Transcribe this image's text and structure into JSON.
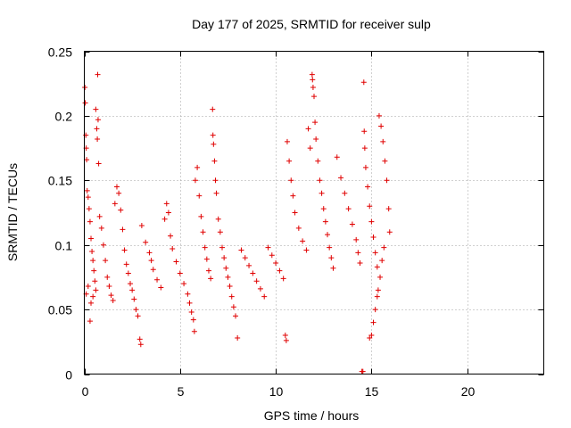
{
  "chart_data": {
    "type": "scatter",
    "title": "Day 177 of 2025, SRMTID for receiver sulp",
    "xlabel": "GPS time / hours",
    "ylabel": "SRMTID / TECUs",
    "xlim": [
      0,
      24
    ],
    "ylim": [
      0,
      0.25
    ],
    "x_ticks": [
      0,
      5,
      10,
      15,
      20
    ],
    "x_tick_labels": [
      "0",
      "5",
      "10",
      "15",
      "20"
    ],
    "y_ticks": [
      0,
      0.05,
      0.1,
      0.15,
      0.2,
      0.25
    ],
    "y_tick_labels": [
      "0",
      "0.05",
      "0.1",
      "0.15",
      "0.2",
      "0.25"
    ],
    "grid": true,
    "marker": "plus",
    "color": "#e00000",
    "series": [
      {
        "points": [
          [
            0.03,
            0.222
          ],
          [
            0.05,
            0.21
          ],
          [
            0.08,
            0.185
          ],
          [
            0.1,
            0.175
          ],
          [
            0.12,
            0.166
          ],
          [
            0.15,
            0.142
          ],
          [
            0.2,
            0.137
          ],
          [
            0.25,
            0.128
          ],
          [
            0.3,
            0.118
          ],
          [
            0.35,
            0.105
          ],
          [
            0.4,
            0.095
          ],
          [
            0.45,
            0.088
          ],
          [
            0.5,
            0.08
          ],
          [
            0.55,
            0.072
          ],
          [
            0.6,
            0.065
          ],
          [
            0.1,
            0.062
          ],
          [
            0.2,
            0.068
          ],
          [
            0.3,
            0.041
          ],
          [
            0.35,
            0.055
          ],
          [
            0.45,
            0.06
          ],
          [
            0.6,
            0.205
          ],
          [
            0.65,
            0.19
          ],
          [
            0.68,
            0.182
          ],
          [
            0.7,
            0.232
          ],
          [
            0.72,
            0.197
          ],
          [
            0.75,
            0.163
          ],
          [
            0.8,
            0.122
          ],
          [
            0.9,
            0.113
          ],
          [
            1.0,
            0.1
          ],
          [
            1.1,
            0.088
          ],
          [
            1.2,
            0.075
          ],
          [
            1.3,
            0.068
          ],
          [
            1.4,
            0.061
          ],
          [
            1.5,
            0.057
          ],
          [
            1.6,
            0.132
          ],
          [
            1.7,
            0.145
          ],
          [
            1.8,
            0.14
          ],
          [
            1.9,
            0.127
          ],
          [
            2.0,
            0.112
          ],
          [
            2.1,
            0.096
          ],
          [
            2.2,
            0.085
          ],
          [
            2.3,
            0.078
          ],
          [
            2.4,
            0.07
          ],
          [
            2.5,
            0.065
          ],
          [
            2.6,
            0.058
          ],
          [
            2.7,
            0.05
          ],
          [
            2.8,
            0.045
          ],
          [
            2.9,
            0.027
          ],
          [
            2.95,
            0.023
          ],
          [
            3.0,
            0.115
          ],
          [
            3.2,
            0.102
          ],
          [
            3.4,
            0.094
          ],
          [
            3.5,
            0.088
          ],
          [
            3.6,
            0.081
          ],
          [
            3.8,
            0.073
          ],
          [
            4.0,
            0.067
          ],
          [
            4.2,
            0.12
          ],
          [
            4.3,
            0.132
          ],
          [
            4.4,
            0.125
          ],
          [
            4.5,
            0.107
          ],
          [
            4.6,
            0.097
          ],
          [
            4.8,
            0.087
          ],
          [
            5.0,
            0.078
          ],
          [
            5.2,
            0.07
          ],
          [
            5.4,
            0.062
          ],
          [
            5.5,
            0.055
          ],
          [
            5.6,
            0.048
          ],
          [
            5.7,
            0.042
          ],
          [
            5.75,
            0.033
          ],
          [
            5.8,
            0.15
          ],
          [
            5.9,
            0.16
          ],
          [
            6.0,
            0.138
          ],
          [
            6.1,
            0.122
          ],
          [
            6.2,
            0.11
          ],
          [
            6.3,
            0.098
          ],
          [
            6.4,
            0.089
          ],
          [
            6.5,
            0.08
          ],
          [
            6.6,
            0.074
          ],
          [
            6.7,
            0.205
          ],
          [
            6.72,
            0.185
          ],
          [
            6.75,
            0.178
          ],
          [
            6.8,
            0.165
          ],
          [
            6.85,
            0.15
          ],
          [
            6.9,
            0.14
          ],
          [
            7.0,
            0.12
          ],
          [
            7.1,
            0.11
          ],
          [
            7.2,
            0.098
          ],
          [
            7.3,
            0.09
          ],
          [
            7.4,
            0.082
          ],
          [
            7.5,
            0.075
          ],
          [
            7.6,
            0.068
          ],
          [
            7.7,
            0.06
          ],
          [
            7.8,
            0.052
          ],
          [
            7.9,
            0.045
          ],
          [
            8.0,
            0.028
          ],
          [
            8.2,
            0.096
          ],
          [
            8.4,
            0.09
          ],
          [
            8.6,
            0.084
          ],
          [
            8.8,
            0.078
          ],
          [
            9.0,
            0.072
          ],
          [
            9.2,
            0.066
          ],
          [
            9.4,
            0.06
          ],
          [
            9.6,
            0.098
          ],
          [
            9.8,
            0.092
          ],
          [
            10.0,
            0.086
          ],
          [
            10.2,
            0.08
          ],
          [
            10.4,
            0.074
          ],
          [
            10.5,
            0.03
          ],
          [
            10.55,
            0.026
          ],
          [
            10.6,
            0.18
          ],
          [
            10.7,
            0.165
          ],
          [
            10.8,
            0.15
          ],
          [
            10.9,
            0.138
          ],
          [
            11.0,
            0.125
          ],
          [
            11.2,
            0.113
          ],
          [
            11.4,
            0.103
          ],
          [
            11.6,
            0.096
          ],
          [
            11.7,
            0.19
          ],
          [
            11.8,
            0.175
          ],
          [
            11.9,
            0.232
          ],
          [
            11.92,
            0.228
          ],
          [
            11.95,
            0.222
          ],
          [
            12.0,
            0.215
          ],
          [
            12.05,
            0.195
          ],
          [
            12.1,
            0.182
          ],
          [
            12.2,
            0.165
          ],
          [
            12.3,
            0.15
          ],
          [
            12.4,
            0.14
          ],
          [
            12.5,
            0.128
          ],
          [
            12.6,
            0.118
          ],
          [
            12.7,
            0.108
          ],
          [
            12.8,
            0.098
          ],
          [
            12.9,
            0.09
          ],
          [
            13.0,
            0.082
          ],
          [
            13.2,
            0.168
          ],
          [
            13.4,
            0.152
          ],
          [
            13.6,
            0.14
          ],
          [
            13.8,
            0.128
          ],
          [
            14.0,
            0.116
          ],
          [
            14.2,
            0.104
          ],
          [
            14.3,
            0.094
          ],
          [
            14.4,
            0.086
          ],
          [
            14.5,
            0.002
          ],
          [
            14.55,
            0.002
          ],
          [
            14.6,
            0.226
          ],
          [
            14.62,
            0.188
          ],
          [
            14.65,
            0.175
          ],
          [
            14.7,
            0.16
          ],
          [
            14.8,
            0.145
          ],
          [
            14.9,
            0.13
          ],
          [
            15.0,
            0.118
          ],
          [
            15.1,
            0.106
          ],
          [
            15.2,
            0.094
          ],
          [
            15.3,
            0.083
          ],
          [
            15.4,
            0.2
          ],
          [
            15.5,
            0.192
          ],
          [
            15.6,
            0.18
          ],
          [
            15.7,
            0.165
          ],
          [
            15.8,
            0.15
          ],
          [
            15.9,
            0.128
          ],
          [
            15.95,
            0.11
          ],
          [
            15.0,
            0.03
          ],
          [
            14.9,
            0.028
          ],
          [
            15.1,
            0.04
          ],
          [
            15.2,
            0.05
          ],
          [
            15.3,
            0.06
          ],
          [
            15.35,
            0.065
          ],
          [
            15.45,
            0.075
          ],
          [
            15.55,
            0.088
          ],
          [
            15.65,
            0.098
          ]
        ]
      }
    ]
  }
}
